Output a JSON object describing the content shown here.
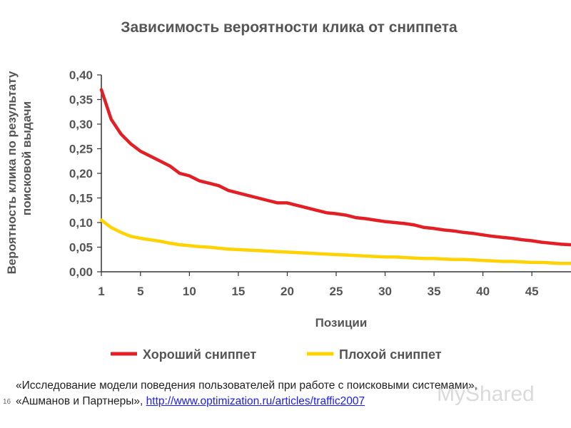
{
  "chart_data": {
    "type": "line",
    "title": "Зависимость вероятности клика от сниппета",
    "xlabel": "Позиции",
    "ylabel_line1": "Вероятность клика по результату",
    "ylabel_line2": "поисковой выдачи",
    "xlim": [
      1,
      49
    ],
    "ylim": [
      0,
      0.4
    ],
    "x_ticks": [
      1,
      5,
      10,
      15,
      20,
      25,
      30,
      35,
      40,
      45
    ],
    "y_ticks": [
      "0,00",
      "0,05",
      "0,10",
      "0,15",
      "0,20",
      "0,25",
      "0,30",
      "0,35",
      "0,40"
    ],
    "y_tick_values": [
      0,
      0.05,
      0.1,
      0.15,
      0.2,
      0.25,
      0.3,
      0.35,
      0.4
    ],
    "grid": false,
    "legend_position": "bottom",
    "x": [
      1,
      2,
      3,
      4,
      5,
      6,
      7,
      8,
      9,
      10,
      11,
      12,
      13,
      14,
      15,
      16,
      17,
      18,
      19,
      20,
      21,
      22,
      23,
      24,
      25,
      26,
      27,
      28,
      29,
      30,
      31,
      32,
      33,
      34,
      35,
      36,
      37,
      38,
      39,
      40,
      41,
      42,
      43,
      44,
      45,
      46,
      47,
      48,
      49
    ],
    "series": [
      {
        "name": "Хороший сниппет",
        "color": "#e31e24",
        "values": [
          0.37,
          0.31,
          0.28,
          0.26,
          0.245,
          0.235,
          0.225,
          0.215,
          0.2,
          0.195,
          0.185,
          0.18,
          0.175,
          0.165,
          0.16,
          0.155,
          0.15,
          0.145,
          0.14,
          0.14,
          0.135,
          0.13,
          0.125,
          0.12,
          0.118,
          0.115,
          0.11,
          0.108,
          0.105,
          0.102,
          0.1,
          0.098,
          0.095,
          0.09,
          0.088,
          0.085,
          0.083,
          0.08,
          0.078,
          0.075,
          0.072,
          0.07,
          0.068,
          0.065,
          0.063,
          0.06,
          0.058,
          0.056,
          0.055
        ]
      },
      {
        "name": "Плохой сниппет",
        "color": "#ffd200",
        "values": [
          0.105,
          0.09,
          0.08,
          0.072,
          0.068,
          0.065,
          0.062,
          0.058,
          0.055,
          0.053,
          0.051,
          0.05,
          0.048,
          0.046,
          0.045,
          0.044,
          0.043,
          0.042,
          0.041,
          0.04,
          0.039,
          0.038,
          0.037,
          0.036,
          0.035,
          0.034,
          0.033,
          0.032,
          0.031,
          0.03,
          0.03,
          0.029,
          0.028,
          0.027,
          0.027,
          0.026,
          0.025,
          0.025,
          0.024,
          0.023,
          0.022,
          0.021,
          0.021,
          0.02,
          0.019,
          0.019,
          0.018,
          0.017,
          0.017
        ]
      }
    ]
  },
  "caption": {
    "text_line1": "«Исследование модели поведения пользователей при работе с поисковыми системами»,",
    "text_line2": "«Ашманов и Партнеры», ",
    "link_text": "http://www.optimization.ru/articles/traffic2007"
  },
  "slide_number": "16",
  "watermark": "MyShared"
}
